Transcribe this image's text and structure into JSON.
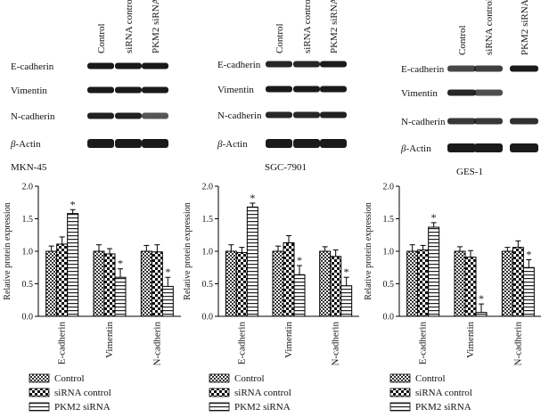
{
  "blot_lanes": [
    "Control",
    "siRNA control",
    "PKM2 siRNA"
  ],
  "blot_rows": [
    "E-cadherin",
    "Vimentin",
    "N-cadherin",
    "β-Actin"
  ],
  "chart_data": [
    {
      "type": "bar",
      "title": "MKN-45",
      "ylabel": "Relative protein expression",
      "ylim": [
        0,
        2.0
      ],
      "yticks": [
        "0.0",
        "0.5",
        "1.0",
        "1.5",
        "2.0"
      ],
      "categories": [
        "E-cadherin",
        "Vimentin",
        "N-cadherin"
      ],
      "series": [
        {
          "name": "Control",
          "values": [
            1.0,
            1.0,
            1.0
          ],
          "errors": [
            0.08,
            0.1,
            0.09
          ]
        },
        {
          "name": "siRNA control",
          "values": [
            1.11,
            0.96,
            0.99
          ],
          "errors": [
            0.11,
            0.08,
            0.11
          ]
        },
        {
          "name": "PKM2 siRNA",
          "values": [
            1.58,
            0.6,
            0.46
          ],
          "errors": [
            0.06,
            0.13,
            0.14
          ]
        }
      ],
      "significance": [
        [
          false,
          false,
          true
        ],
        [
          false,
          false,
          true
        ],
        [
          false,
          false,
          true
        ]
      ],
      "marker": "*"
    },
    {
      "type": "bar",
      "title": "SGC-7901",
      "ylabel": "Relative protein expression",
      "ylim": [
        0,
        2.0
      ],
      "yticks": [
        "0.0",
        "0.5",
        "1.0",
        "1.5",
        "2.0"
      ],
      "categories": [
        "E-cadherin",
        "Vimentin",
        "N-cadherin"
      ],
      "series": [
        {
          "name": "Control",
          "values": [
            1.0,
            1.0,
            1.0
          ],
          "errors": [
            0.1,
            0.08,
            0.07
          ]
        },
        {
          "name": "siRNA control",
          "values": [
            0.98,
            1.13,
            0.92
          ],
          "errors": [
            0.08,
            0.11,
            0.1
          ]
        },
        {
          "name": "PKM2 siRNA",
          "values": [
            1.68,
            0.64,
            0.47
          ],
          "errors": [
            0.06,
            0.14,
            0.13
          ]
        }
      ],
      "significance": [
        [
          false,
          false,
          true
        ],
        [
          false,
          false,
          true
        ],
        [
          false,
          false,
          true
        ]
      ],
      "marker": "*"
    },
    {
      "type": "bar",
      "title": "GES-1",
      "ylabel": "Relative protein expression",
      "ylim": [
        0,
        2.0
      ],
      "yticks": [
        "0.0",
        "0.5",
        "1.0",
        "1.5",
        "2.0"
      ],
      "categories": [
        "E-cadherin",
        "Vimentin",
        "N-cadherin"
      ],
      "series": [
        {
          "name": "Control",
          "values": [
            1.0,
            1.0,
            1.0
          ],
          "errors": [
            0.1,
            0.07,
            0.06
          ]
        },
        {
          "name": "siRNA control",
          "values": [
            1.02,
            0.91,
            1.06
          ],
          "errors": [
            0.07,
            0.1,
            0.1
          ]
        },
        {
          "name": "PKM2 siRNA",
          "values": [
            1.37,
            0.06,
            0.75
          ],
          "errors": [
            0.07,
            0.13,
            0.12
          ]
        }
      ],
      "significance": [
        [
          false,
          false,
          true
        ],
        [
          false,
          false,
          true
        ],
        [
          false,
          false,
          true
        ]
      ],
      "marker": "*"
    }
  ]
}
